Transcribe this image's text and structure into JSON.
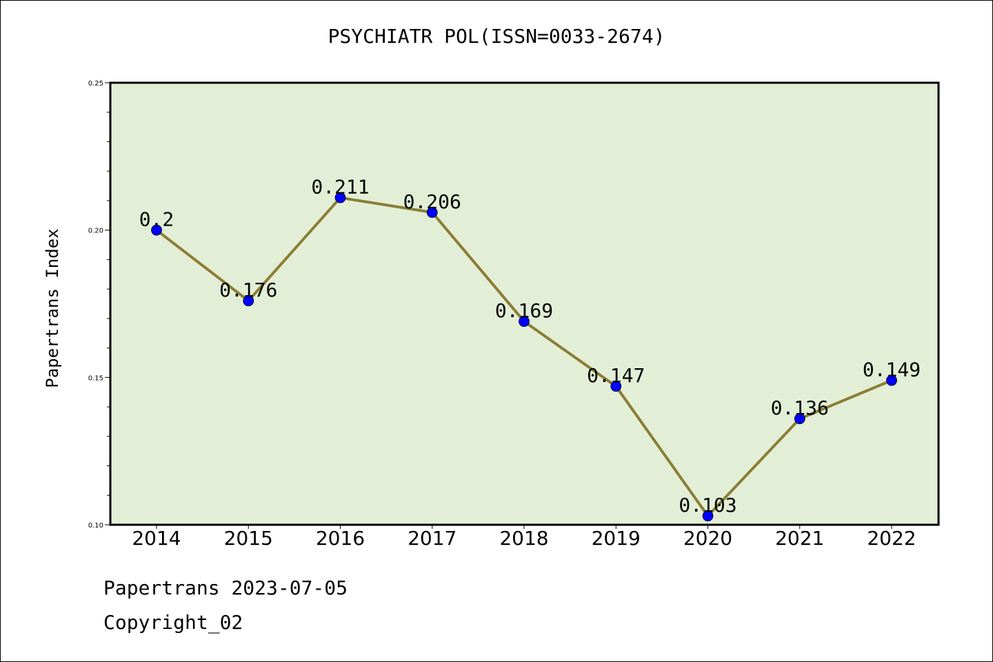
{
  "title": "PSYCHIATR POL(ISSN=0033-2674)",
  "footer": {
    "date_line": "Papertrans 2023-07-05",
    "copyright_line": "Copyright_02"
  },
  "colors": {
    "plot_background": "#e2efd6",
    "line": "#8b7d35",
    "marker": "#0000ff"
  },
  "chart_data": {
    "type": "line",
    "title": "PSYCHIATR POL(ISSN=0033-2674)",
    "xlabel": "",
    "ylabel": "Papertrans Index",
    "categories": [
      "2014",
      "2015",
      "2016",
      "2017",
      "2018",
      "2019",
      "2020",
      "2021",
      "2022"
    ],
    "series": [
      {
        "values": [
          0.2,
          0.176,
          0.211,
          0.206,
          0.169,
          0.147,
          0.103,
          0.136,
          0.149
        ],
        "labels": [
          "0.2",
          "0.176",
          "0.211",
          "0.206",
          "0.169",
          "0.147",
          "0.103",
          "0.136",
          "0.149"
        ]
      }
    ],
    "ylim": [
      0.1,
      0.25
    ],
    "yticks": [
      "0.10",
      "0.15",
      "0.20",
      "0.25"
    ],
    "grid": false,
    "legend": "none"
  }
}
